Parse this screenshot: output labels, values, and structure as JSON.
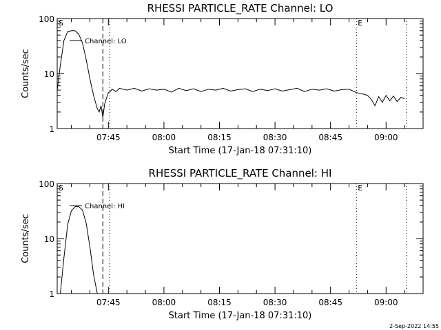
{
  "chart_data": [
    {
      "type": "line",
      "title": "RHESSI PARTICLE_RATE Channel: LO",
      "xlabel": "Start Time (17-Jan-18 07:31:10)",
      "ylabel": "Counts/sec",
      "yscale": "log",
      "ylim": [
        1,
        100
      ],
      "y_ticks": [
        "1",
        "10",
        "100"
      ],
      "xlim": [
        "07:31:10",
        "09:10:00"
      ],
      "x_ticks": [
        {
          "t": "07:45:00",
          "label": "07:45"
        },
        {
          "t": "08:00:00",
          "label": "08:00"
        },
        {
          "t": "08:15:00",
          "label": "08:15"
        },
        {
          "t": "08:30:00",
          "label": "08:30"
        },
        {
          "t": "08:45:00",
          "label": "08:45"
        },
        {
          "t": "09:00:00",
          "label": "09:00"
        }
      ],
      "markers": [
        {
          "t": "07:31:10",
          "label": "S",
          "style": "dotted"
        },
        {
          "t": "07:43:30",
          "label": "",
          "style": "dashed"
        },
        {
          "t": "07:45:20",
          "label": "",
          "style": "dotted"
        },
        {
          "t": "08:52:00",
          "label": "E",
          "style": "dotted"
        },
        {
          "t": "09:05:30",
          "label": "",
          "style": "dotted"
        }
      ],
      "series": [
        {
          "name": "Channel: LO",
          "x": [
            "07:31:10",
            "07:32:00",
            "07:33:00",
            "07:34:00",
            "07:35:00",
            "07:36:00",
            "07:37:00",
            "07:38:00",
            "07:39:00",
            "07:40:00",
            "07:41:00",
            "07:42:00",
            "07:42:30",
            "07:43:00",
            "07:43:30",
            "07:44:00",
            "07:44:30",
            "07:45:00",
            "07:45:20",
            "07:46:00",
            "07:47:00",
            "07:48:00",
            "07:50:00",
            "07:52:00",
            "07:54:00",
            "07:56:00",
            "07:58:00",
            "08:00:00",
            "08:02:00",
            "08:04:00",
            "08:06:00",
            "08:08:00",
            "08:10:00",
            "08:12:00",
            "08:14:00",
            "08:16:00",
            "08:18:00",
            "08:20:00",
            "08:22:00",
            "08:24:00",
            "08:26:00",
            "08:28:00",
            "08:30:00",
            "08:32:00",
            "08:34:00",
            "08:36:00",
            "08:38:00",
            "08:40:00",
            "08:42:00",
            "08:44:00",
            "08:46:00",
            "08:48:00",
            "08:50:00",
            "08:52:00",
            "08:54:00",
            "08:55:00",
            "08:56:00",
            "08:57:00",
            "08:58:00",
            "08:59:00",
            "09:00:00",
            "09:01:00",
            "09:02:00",
            "09:03:00",
            "09:04:00",
            "09:05:00"
          ],
          "values": [
            5,
            14,
            40,
            58,
            60,
            60,
            52,
            36,
            18,
            8,
            4,
            2.3,
            2.0,
            2.6,
            1.6,
            2.8,
            3.6,
            4.5,
            4.6,
            5.2,
            4.7,
            5.4,
            5.0,
            5.4,
            4.8,
            5.3,
            5.0,
            5.2,
            4.6,
            5.4,
            4.9,
            5.3,
            4.7,
            5.2,
            5.0,
            5.4,
            4.8,
            5.1,
            5.3,
            4.7,
            5.2,
            4.9,
            5.3,
            4.8,
            5.1,
            5.4,
            4.7,
            5.2,
            5.0,
            5.3,
            4.8,
            5.1,
            5.2,
            4.5,
            4.2,
            4.0,
            3.4,
            2.6,
            3.8,
            3.0,
            4.0,
            3.2,
            3.9,
            3.1,
            3.7,
            3.5
          ]
        }
      ]
    },
    {
      "type": "line",
      "title": "RHESSI PARTICLE_RATE Channel: HI",
      "xlabel": "Start Time (17-Jan-18 07:31:10)",
      "ylabel": "Counts/sec",
      "yscale": "log",
      "ylim": [
        1,
        100
      ],
      "y_ticks": [
        "1",
        "10",
        "100"
      ],
      "xlim": [
        "07:31:10",
        "09:10:00"
      ],
      "x_ticks": [
        {
          "t": "07:45:00",
          "label": "07:45"
        },
        {
          "t": "08:00:00",
          "label": "08:00"
        },
        {
          "t": "08:15:00",
          "label": "08:15"
        },
        {
          "t": "08:30:00",
          "label": "08:30"
        },
        {
          "t": "08:45:00",
          "label": "08:45"
        },
        {
          "t": "09:00:00",
          "label": "09:00"
        }
      ],
      "markers": [
        {
          "t": "07:31:10",
          "label": "S",
          "style": "dotted"
        },
        {
          "t": "07:43:30",
          "label": "",
          "style": "dashed"
        },
        {
          "t": "07:45:20",
          "label": "",
          "style": "dotted"
        },
        {
          "t": "08:52:00",
          "label": "E",
          "style": "dotted"
        },
        {
          "t": "09:05:30",
          "label": "",
          "style": "dotted"
        }
      ],
      "series": [
        {
          "name": "Channel: HI",
          "x": [
            "07:32:00",
            "07:33:00",
            "07:34:00",
            "07:35:00",
            "07:36:00",
            "07:37:00",
            "07:38:00",
            "07:39:00",
            "07:40:00",
            "07:41:00",
            "07:42:00"
          ],
          "values": [
            1.0,
            4.5,
            18,
            32,
            38,
            38,
            33,
            19,
            7,
            2.2,
            1.0
          ]
        }
      ]
    }
  ],
  "footer": {
    "timestamp": "2-Sep-2022 14:55"
  }
}
